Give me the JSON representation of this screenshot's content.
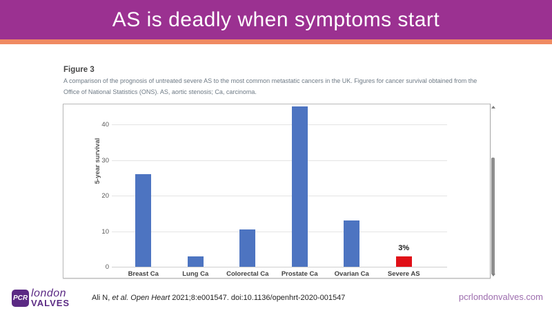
{
  "header": {
    "title": "AS is deadly when symptoms start",
    "banner_color": "#9b3191",
    "stripe_color": "#f08a62"
  },
  "figure": {
    "label": "Figure 3",
    "caption": "A comparison of the prognosis of untreated severe AS to the most common metastatic cancers in the UK. Figures for cancer survival obtained from the Office of National Statistics (ONS). AS, aortic stenosis; Ca, carcinoma."
  },
  "chart_data": {
    "type": "bar",
    "categories": [
      "Breast Ca",
      "Lung Ca",
      "Colorectal Ca",
      "Prostate Ca",
      "Ovarian Ca",
      "Severe AS"
    ],
    "values": [
      26,
      3,
      10.5,
      45,
      13,
      3
    ],
    "bar_colors": [
      "#4d74c1",
      "#4d74c1",
      "#4d74c1",
      "#4d74c1",
      "#4d74c1",
      "#e01018"
    ],
    "annotations": [
      {
        "category": "Severe AS",
        "text": "3%"
      }
    ],
    "title": "",
    "xlabel": "",
    "ylabel": "5-year survival",
    "yticks": [
      0,
      10,
      20,
      30,
      40
    ],
    "ylim": [
      0,
      45
    ],
    "grid": true,
    "legend": false
  },
  "scrollbar": {
    "present": true
  },
  "footer": {
    "logo": {
      "badge": "PCR",
      "line1": "london",
      "line2": "VALVES"
    },
    "citation_parts": [
      {
        "text": "Ali N, ",
        "italic": false
      },
      {
        "text": "et al.",
        "italic": true
      },
      {
        "text": " ",
        "italic": false
      },
      {
        "text": "Open Heart",
        "italic": true
      },
      {
        "text": " 2021;8:e001547. doi:10.1136/openhrt-2020-001547",
        "italic": false
      }
    ],
    "website": "pcrlondonvalves.com"
  }
}
